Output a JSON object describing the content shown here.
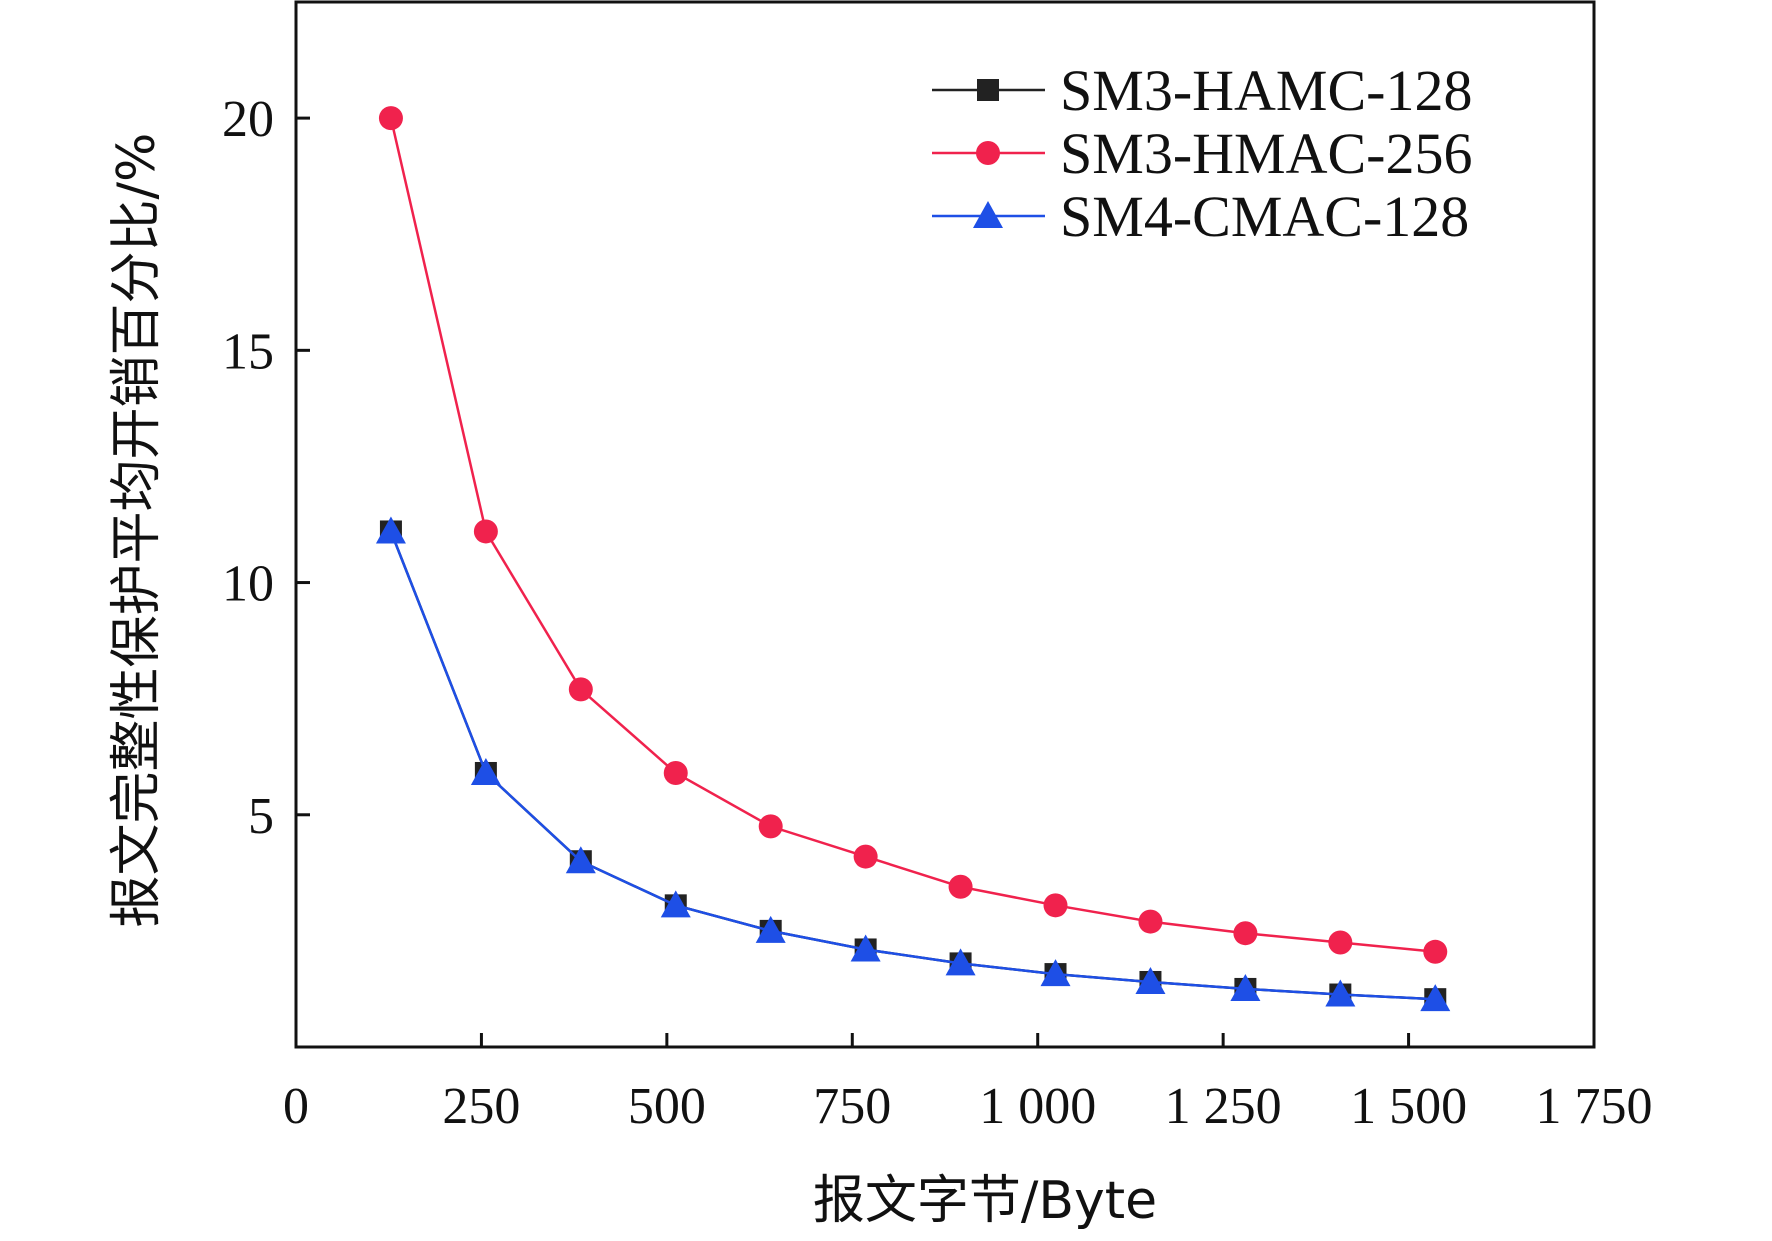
{
  "chart_data": {
    "type": "line",
    "title": "",
    "xlabel": "报文字节/Byte",
    "ylabel": "报文完整性保护平均开销百分比/%",
    "xlim": [
      0,
      1750
    ],
    "ylim": [
      0,
      22.5
    ],
    "x_ticks": [
      0,
      250,
      500,
      750,
      1000,
      1250,
      1500,
      1750
    ],
    "x_tick_labels": [
      "0",
      "250",
      "500",
      "750",
      "1 000",
      "1 250",
      "1 500",
      "1 750"
    ],
    "y_ticks": [
      5,
      10,
      15,
      20
    ],
    "y_tick_labels": [
      "5",
      "10",
      "15",
      "20"
    ],
    "x": [
      128,
      256,
      384,
      512,
      640,
      768,
      896,
      1024,
      1152,
      1280,
      1408,
      1536
    ],
    "series": [
      {
        "name": "SM3-HAMC-128",
        "color": "#222222",
        "marker": "square",
        "values": [
          11.1,
          5.9,
          4.0,
          3.05,
          2.5,
          2.1,
          1.8,
          1.57,
          1.4,
          1.25,
          1.13,
          1.03
        ]
      },
      {
        "name": "SM3-HMAC-256",
        "color": "#f0224d",
        "marker": "circle",
        "values": [
          20.0,
          11.1,
          7.7,
          5.9,
          4.75,
          4.1,
          3.45,
          3.05,
          2.7,
          2.45,
          2.25,
          2.05
        ]
      },
      {
        "name": "SM4-CMAC-128",
        "color": "#1e4fe6",
        "marker": "triangle",
        "values": [
          11.1,
          5.9,
          4.0,
          3.05,
          2.5,
          2.1,
          1.8,
          1.57,
          1.4,
          1.25,
          1.13,
          1.03
        ]
      }
    ],
    "legend": {
      "position": "top-right"
    },
    "grid": false
  }
}
